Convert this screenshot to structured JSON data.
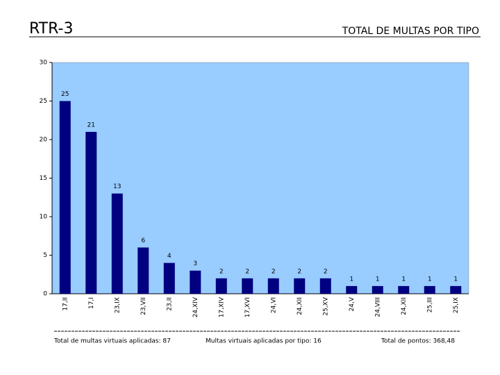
{
  "chart_data": {
    "type": "bar",
    "heading": "RTR-3",
    "title": "TOTAL DE MULTAS POR TIPO",
    "categories": [
      "17,II",
      "17,I",
      "23,IX",
      "23,VII",
      "23,II",
      "24,XIV",
      "17,XIV",
      "17,XVI",
      "24,VI",
      "24,XII",
      "25,XV",
      "24,V",
      "24,VIII",
      "24,XII",
      "25,III",
      "25,IX"
    ],
    "values": [
      25,
      21,
      13,
      6,
      4,
      3,
      2,
      2,
      2,
      2,
      2,
      1,
      1,
      1,
      1,
      1
    ],
    "color": "#000080",
    "background": "#99ccff",
    "ylim": [
      0,
      30
    ],
    "yticks": [
      0,
      5,
      10,
      15,
      20,
      25,
      30
    ],
    "grid": false,
    "footer": [
      "Total de multas virtuais aplicadas: 87",
      "Multas virtuais aplicadas por tipo: 16",
      "Total de pontos: 368,48"
    ]
  }
}
